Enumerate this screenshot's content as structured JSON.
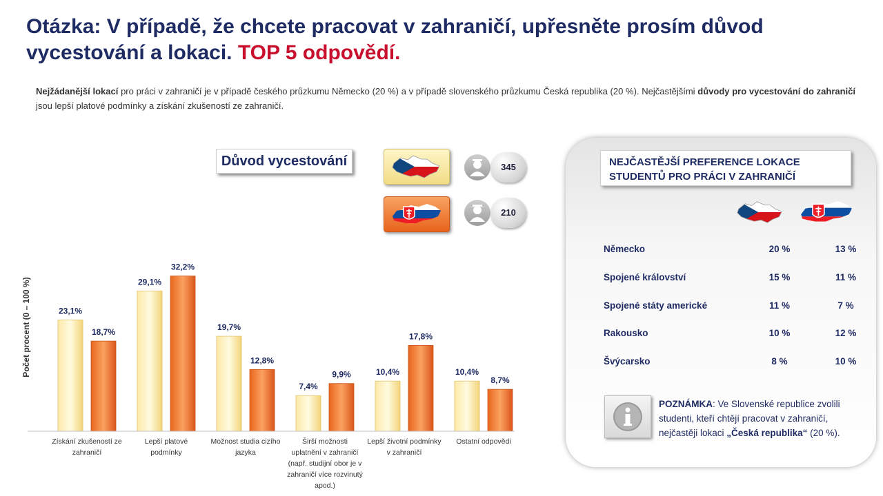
{
  "title": {
    "main": "Otázka: V případě, že chcete pracovat v zahraničí, upřesněte prosím důvod vycestování a lokaci.",
    "highlight": "TOP 5 odpovědí."
  },
  "intro": {
    "b1": "Nejžádanější lokací",
    "t1": " pro práci v zahraničí je v případě českého průzkumu Německo (20 %) a v případě slovenského průzkumu Česká republika (20 %). Nejčastějšími ",
    "b2": "důvody pro vycestování do zahraničí",
    "t2": " jsou lepší platové podmínky  a získání zkušeností ze zahraničí."
  },
  "reason_box": "Důvod vycestování",
  "respondents": {
    "cz": "345",
    "sk": "210"
  },
  "colors": {
    "cz_bar": "#f8e7a0",
    "sk_bar": "#ef7a2c",
    "title": "#1f2b63",
    "accent_red": "#c8102e"
  },
  "chart_data": {
    "type": "bar",
    "categories": [
      [
        "Získání zkušeností ze",
        "zahraničí"
      ],
      [
        "Lepší platové",
        "podmínky"
      ],
      [
        "Možnost studia cizího",
        "jazyka"
      ],
      [
        "Širší možnosti",
        "uplatnění v zahraničí",
        "(např. studijní obor je v",
        "zahraničí více rozvinutý",
        "apod.)"
      ],
      [
        "Lepší životní podmínky",
        "v zahraničí"
      ],
      [
        "Ostatní odpovědi"
      ]
    ],
    "series": [
      {
        "values": [
          23.1,
          29.1,
          19.7,
          7.4,
          10.4,
          10.4
        ],
        "labels": [
          "23,1%",
          "29,1%",
          "19,7%",
          "7,4%",
          "10,4%",
          "10,4%"
        ]
      },
      {
        "values": [
          18.7,
          32.2,
          12.8,
          9.9,
          17.8,
          8.7
        ],
        "labels": [
          "18,7%",
          "32,2%",
          "12,8%",
          "9,9%",
          "17,8%",
          "8,7%"
        ]
      }
    ],
    "ylabel": "Počet procent  (0 – 100 %)",
    "ylim": [
      0,
      40
    ]
  },
  "panel": {
    "heading_line1": "NEJČASTĚJŠÍ PREFERENCE LOKACE",
    "heading_line2": "STUDENTŮ PRO PRÁCI V ZAHRANIČÍ",
    "rows": [
      {
        "name": "Německo",
        "cz": "20 %",
        "sk": "13 %"
      },
      {
        "name": "Spojené království",
        "cz": "15 %",
        "sk": "11 %"
      },
      {
        "name": "Spojené státy americké",
        "cz": "11 %",
        "sk": "7 %"
      },
      {
        "name": "Rakousko",
        "cz": "10 %",
        "sk": "12 %"
      },
      {
        "name": "Švýcarsko",
        "cz": "8 %",
        "sk": "10 %"
      }
    ],
    "note": {
      "label": "POZNÁMKA",
      "text1": ": Ve Slovenské republice zvolili studenti, kteří chtějí pracovat v zahraničí, nejčastěji lokaci ",
      "bold": "„Česká republika“",
      "text2": " (20 %)."
    }
  }
}
